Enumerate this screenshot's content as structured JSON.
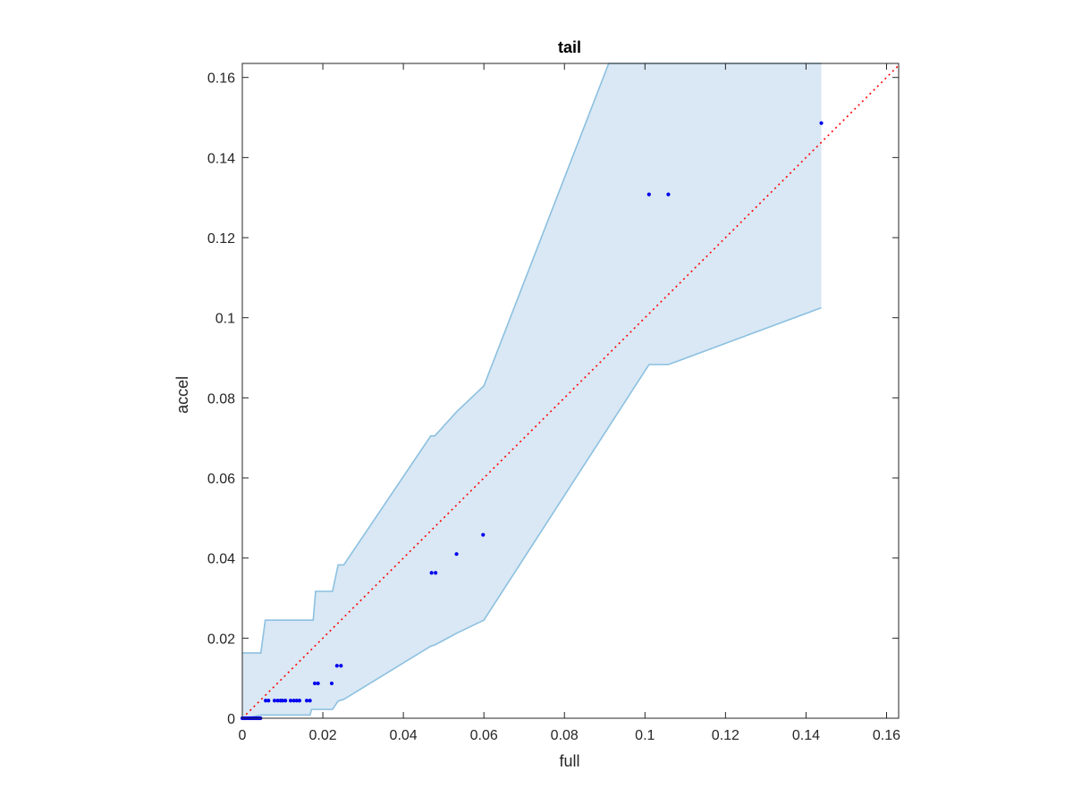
{
  "chart_data": {
    "type": "scatter",
    "title": "tail",
    "xlabel": "full",
    "ylabel": "accel",
    "xlim": [
      0,
      0.163
    ],
    "ylim": [
      0,
      0.1635
    ],
    "xticks": [
      0,
      0.02,
      0.04,
      0.06,
      0.08,
      0.1,
      0.12,
      0.14,
      0.16
    ],
    "xtick_labels": [
      "0",
      "0.02",
      "0.04",
      "0.06",
      "0.08",
      "0.1",
      "0.12",
      "0.14",
      "0.16"
    ],
    "yticks": [
      0,
      0.02,
      0.04,
      0.06,
      0.08,
      0.1,
      0.12,
      0.14,
      0.16
    ],
    "ytick_labels": [
      "0",
      "0.02",
      "0.04",
      "0.06",
      "0.08",
      "0.1",
      "0.12",
      "0.14",
      "0.16"
    ],
    "grid": false,
    "colors": {
      "points": "#0000ee",
      "band_fill": "#d9e8f4",
      "band_edge": "#8cc0e0",
      "reference_line": "#ff0000",
      "axes": "#262626"
    },
    "points": [
      {
        "x": 0.0,
        "y": 0.0
      },
      {
        "x": 0.0005,
        "y": 0.0
      },
      {
        "x": 0.001,
        "y": 0.0
      },
      {
        "x": 0.0015,
        "y": 0.0
      },
      {
        "x": 0.002,
        "y": 0.0
      },
      {
        "x": 0.0025,
        "y": 0.0
      },
      {
        "x": 0.003,
        "y": 0.0
      },
      {
        "x": 0.0035,
        "y": 0.0
      },
      {
        "x": 0.004,
        "y": 0.0
      },
      {
        "x": 0.0045,
        "y": 0.0
      },
      {
        "x": 0.0058,
        "y": 0.0044
      },
      {
        "x": 0.0065,
        "y": 0.0044
      },
      {
        "x": 0.008,
        "y": 0.0044
      },
      {
        "x": 0.0088,
        "y": 0.0044
      },
      {
        "x": 0.0095,
        "y": 0.0044
      },
      {
        "x": 0.01,
        "y": 0.0044
      },
      {
        "x": 0.0107,
        "y": 0.0044
      },
      {
        "x": 0.012,
        "y": 0.0044
      },
      {
        "x": 0.0128,
        "y": 0.0044
      },
      {
        "x": 0.0135,
        "y": 0.0044
      },
      {
        "x": 0.0142,
        "y": 0.0044
      },
      {
        "x": 0.016,
        "y": 0.0044
      },
      {
        "x": 0.0168,
        "y": 0.0044
      },
      {
        "x": 0.018,
        "y": 0.0087
      },
      {
        "x": 0.0188,
        "y": 0.0087
      },
      {
        "x": 0.0222,
        "y": 0.0087
      },
      {
        "x": 0.0235,
        "y": 0.0131
      },
      {
        "x": 0.0245,
        "y": 0.0131
      },
      {
        "x": 0.047,
        "y": 0.0363
      },
      {
        "x": 0.048,
        "y": 0.0363
      },
      {
        "x": 0.0532,
        "y": 0.041
      },
      {
        "x": 0.0598,
        "y": 0.0458
      },
      {
        "x": 0.101,
        "y": 0.1308
      },
      {
        "x": 0.1058,
        "y": 0.1308
      },
      {
        "x": 0.1438,
        "y": 0.1486
      }
    ],
    "band": {
      "upper": [
        [
          0,
          0.0163
        ],
        [
          0.0046,
          0.0163
        ],
        [
          0.0057,
          0.0245
        ],
        [
          0.0176,
          0.0245
        ],
        [
          0.0182,
          0.0317
        ],
        [
          0.0224,
          0.0317
        ],
        [
          0.0238,
          0.0383
        ],
        [
          0.0252,
          0.0383
        ],
        [
          0.0468,
          0.0705
        ],
        [
          0.0478,
          0.0705
        ],
        [
          0.0532,
          0.0765
        ],
        [
          0.06,
          0.083
        ],
        [
          0.091,
          0.1635
        ],
        [
          0.1438,
          0.1635
        ]
      ],
      "lower": [
        [
          0.1438,
          0.1025
        ],
        [
          0.1058,
          0.0883
        ],
        [
          0.101,
          0.0883
        ],
        [
          0.06,
          0.0245
        ],
        [
          0.0532,
          0.0212
        ],
        [
          0.0478,
          0.0183
        ],
        [
          0.0468,
          0.018
        ],
        [
          0.0252,
          0.0047
        ],
        [
          0.0238,
          0.0043
        ],
        [
          0.0224,
          0.0022
        ],
        [
          0.0172,
          0.0022
        ],
        [
          0.0168,
          0.0008
        ],
        [
          0.0046,
          0.0008
        ],
        [
          0.001,
          0.0
        ],
        [
          0,
          0.0
        ]
      ]
    },
    "reference_line": {
      "style": "dotted",
      "from": [
        0,
        0
      ],
      "to": [
        0.163,
        0.163
      ]
    }
  }
}
